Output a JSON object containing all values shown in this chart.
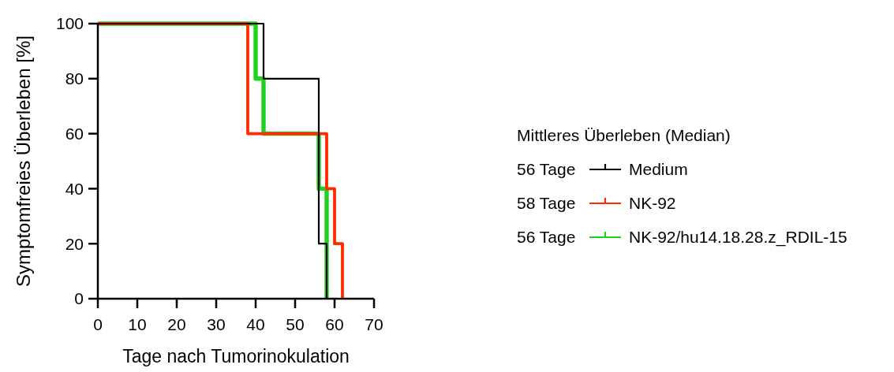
{
  "chart_data": {
    "type": "step",
    "xlabel": "Tage nach Tumorinokulation",
    "ylabel": "Symptomfreies Überleben [%]",
    "legend_title": "Mittleres Überleben (Median)",
    "legend": "right",
    "line_style": "solid",
    "grid": false,
    "xlim": [
      0,
      70
    ],
    "xticks": [
      0,
      10,
      20,
      30,
      40,
      50,
      60,
      70
    ],
    "ylim": [
      0,
      100
    ],
    "yticks": [
      0,
      20,
      40,
      60,
      80,
      100
    ],
    "series": [
      {
        "name": "Medium",
        "color": "#000000",
        "x": [
          0,
          42,
          56,
          58
        ],
        "values": [
          100,
          80,
          20,
          0
        ]
      },
      {
        "name": "NK-92",
        "color": "#ff2a00",
        "x": [
          0,
          38,
          58,
          60,
          62
        ],
        "values": [
          100,
          60,
          40,
          20,
          0
        ]
      },
      {
        "name": "NK-92/hu14.18.28.z_RDIL-15",
        "color": "#1ed21e",
        "x": [
          0,
          40,
          42,
          56,
          58
        ],
        "values": [
          100,
          80,
          60,
          40,
          0
        ]
      }
    ],
    "annotations": [
      "56 Tage",
      "58 Tage",
      "56 Tage"
    ]
  }
}
